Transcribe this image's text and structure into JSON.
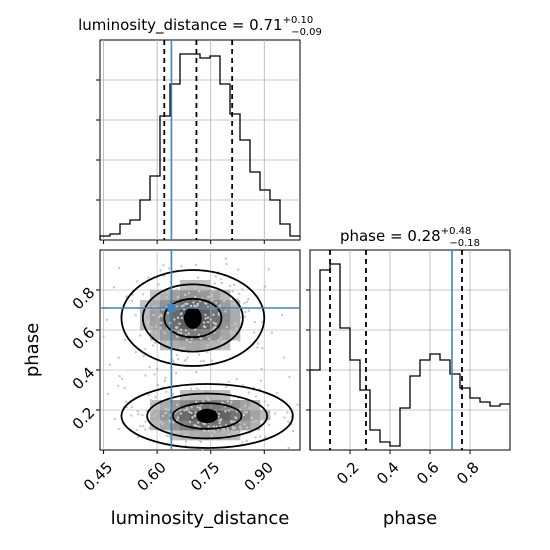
{
  "chart_data": [
    {
      "panel": "luminosity_distance-marginal",
      "type": "histogram",
      "title": {
        "param": "luminosity_distance",
        "median": "0.71",
        "plus": "+0.10",
        "minus": "−0.09"
      },
      "x_range": [
        0.44,
        1.0
      ],
      "bins": [
        0.44,
        0.468,
        0.496,
        0.524,
        0.552,
        0.58,
        0.608,
        0.636,
        0.664,
        0.692,
        0.72,
        0.748,
        0.776,
        0.804,
        0.832,
        0.86,
        0.888,
        0.916,
        0.944,
        0.972,
        1.0
      ],
      "counts": [
        0.02,
        0.03,
        0.08,
        0.1,
        0.2,
        0.32,
        0.62,
        0.78,
        0.93,
        0.93,
        0.91,
        0.92,
        0.78,
        0.63,
        0.5,
        0.34,
        0.25,
        0.2,
        0.08,
        0.02
      ],
      "dashed_lines": [
        0.62,
        0.71,
        0.81
      ],
      "truth_x": 0.64,
      "grid": true,
      "x_ticks": [
        0.45,
        0.6,
        0.75,
        0.9
      ]
    },
    {
      "panel": "phase-vs-luminosity_distance",
      "type": "corner-2d",
      "xlabel": "luminosity_distance",
      "ylabel": "phase",
      "x_range": [
        0.44,
        1.0
      ],
      "y_range": [
        0.0,
        1.0
      ],
      "x_tick_labels": [
        "0.45",
        "0.60",
        "0.75",
        "0.90"
      ],
      "x_ticks": [
        0.45,
        0.6,
        0.75,
        0.9
      ],
      "y_tick_labels": [
        "0.2",
        "0.4",
        "0.6",
        "0.8"
      ],
      "y_ticks": [
        0.2,
        0.4,
        0.6,
        0.8
      ],
      "truth": {
        "x": 0.64,
        "y": 0.71
      },
      "modes": [
        {
          "cx": 0.7,
          "cy": 0.66,
          "sx": 0.1,
          "sy": 0.12
        },
        {
          "cx": 0.74,
          "cy": 0.17,
          "sx": 0.12,
          "sy": 0.08
        }
      ],
      "grid": true
    },
    {
      "panel": "phase-marginal",
      "type": "histogram",
      "title": {
        "param": "phase",
        "median": "0.28",
        "plus": "+0.48",
        "minus": "−0.18"
      },
      "xlabel": "phase",
      "x_range": [
        0.0,
        1.0
      ],
      "bins": [
        0.0,
        0.05,
        0.1,
        0.15,
        0.2,
        0.25,
        0.3,
        0.35,
        0.4,
        0.45,
        0.5,
        0.55,
        0.6,
        0.65,
        0.7,
        0.75,
        0.8,
        0.85,
        0.9,
        0.95,
        1.0
      ],
      "counts": [
        0.4,
        0.9,
        0.93,
        0.61,
        0.45,
        0.3,
        0.1,
        0.04,
        0.02,
        0.21,
        0.37,
        0.45,
        0.48,
        0.45,
        0.38,
        0.31,
        0.26,
        0.24,
        0.22,
        0.23
      ],
      "dashed_lines": [
        0.1,
        0.28,
        0.76
      ],
      "truth_x": 0.71,
      "grid": true,
      "x_tick_labels": [
        "0.2",
        "0.4",
        "0.6",
        "0.8"
      ],
      "x_ticks": [
        0.2,
        0.4,
        0.6,
        0.8
      ]
    }
  ],
  "colors": {
    "truth": "#4682b4",
    "hist": "#000000",
    "grid": "#b0b0b0",
    "density": "#000000"
  }
}
